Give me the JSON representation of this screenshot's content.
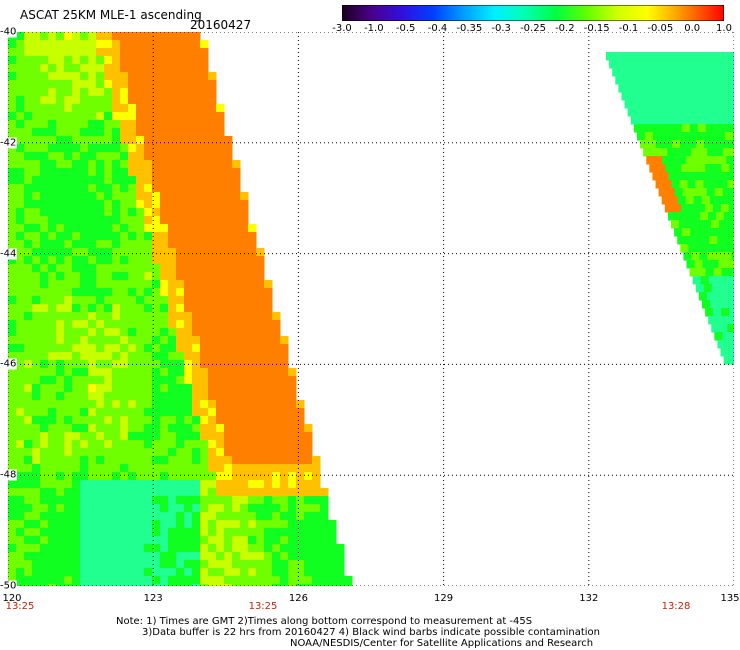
{
  "header": {
    "title": "ASCAT 25KM MLE-1 ascending",
    "date": "20160427"
  },
  "colorbar": {
    "labels": [
      "-3.0",
      "-1.0",
      "-0.5",
      "-0.4",
      "-0.35",
      "-0.3",
      "-0.25",
      "-0.2",
      "-0.15",
      "-0.1",
      "-0.05",
      "0.0",
      "1.0"
    ],
    "colors": [
      "#2a0030",
      "#5a00b0",
      "#2020ff",
      "#0078ff",
      "#00c8ff",
      "#00ffe0",
      "#00ff90",
      "#30ff30",
      "#a0ff00",
      "#ffff00",
      "#ffb000",
      "#ff6000",
      "#ff1000"
    ]
  },
  "map": {
    "lon_ticks": [
      "120",
      "123",
      "126",
      "129",
      "132",
      "135"
    ],
    "lat_ticks": [
      "-40",
      "-42",
      "-44",
      "-46",
      "-48",
      "-50"
    ],
    "times": [
      "13:25",
      "13:25",
      "13:28"
    ]
  },
  "notes": {
    "line1": "Note: 1) Times are GMT 2)Times along bottom correspond to measurement at -45S",
    "line2": "3)Data buffer is 22 hrs from 20160427 4) Black wind barbs indicate possible contamination",
    "line3": "NOAA/NESDIS/Center for Satellite Applications and Research"
  }
}
